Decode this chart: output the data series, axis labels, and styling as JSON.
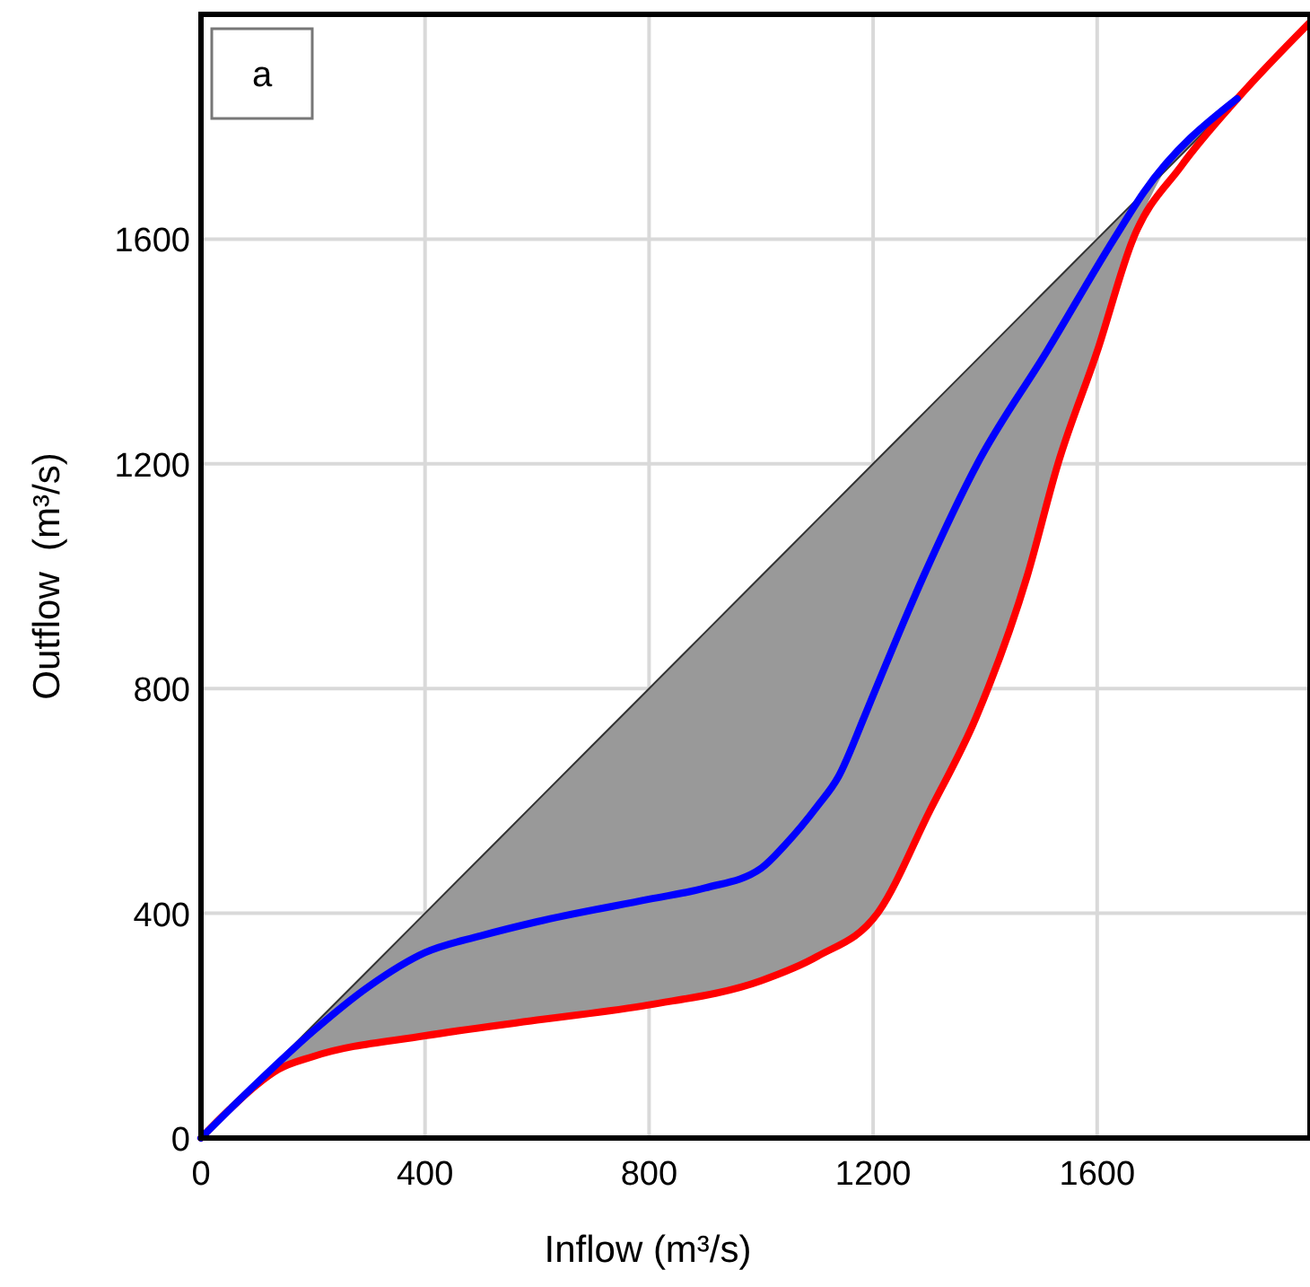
{
  "chart_data": {
    "type": "line",
    "xlabel": "Inflow (m³/s)",
    "ylabel": "Outflow  (m³/s)",
    "annotations": [
      "a"
    ],
    "xlim": [
      0,
      1980
    ],
    "ylim": [
      0,
      2000
    ],
    "xticks": [
      0,
      400,
      800,
      1200,
      1600
    ],
    "yticks": [
      0,
      400,
      800,
      1200,
      1600
    ],
    "grid": true,
    "marker": "none",
    "line_style": "solid",
    "series": [
      {
        "color": "#333333",
        "x": [
          0,
          138,
          200,
          400,
          600,
          800,
          1000,
          1100,
          1210,
          1300,
          1384,
          1475,
          1530,
          1600,
          1664,
          1853
        ],
        "values": [
          0,
          138,
          200,
          400,
          600,
          800,
          1000,
          1100,
          1210,
          1300,
          1384,
          1475,
          1530,
          1600,
          1664,
          1853
        ],
        "lower": [
          0,
          122,
          145,
          182,
          210,
          237,
          280,
          323,
          403,
          580,
          749,
          1000,
          1200,
          1400,
          1600,
          1853
        ],
        "upper": [
          0,
          138,
          200,
          400,
          600,
          800,
          1000,
          1100,
          1210,
          1300,
          1384,
          1475,
          1530,
          1600,
          1664,
          1853
        ]
      },
      {
        "color": "#ff0000",
        "x": [
          0,
          50,
          100,
          138,
          200,
          400,
          600,
          800,
          1000,
          1100,
          1210,
          1300,
          1384,
          1475,
          1530,
          1600,
          1664,
          1750,
          1853,
          1978
        ],
        "values": [
          0,
          50,
          95,
          122,
          145,
          182,
          210,
          237,
          280,
          323,
          403,
          580,
          749,
          1000,
          1200,
          1400,
          1600,
          1730,
          1853,
          1984
        ]
      },
      {
        "color": "#0000ff",
        "x": [
          0,
          100,
          200,
          300,
          400,
          500,
          600,
          800,
          900,
          1000,
          1043,
          1100,
          1138,
          1184,
          1205,
          1290,
          1386,
          1510,
          1630,
          1683,
          1850
        ],
        "values": [
          0,
          98,
          190,
          270,
          330,
          360,
          385,
          425,
          445,
          480,
          522,
          590,
          643,
          749,
          800,
          1000,
          1200,
          1400,
          1600,
          1683,
          1850
        ]
      }
    ]
  }
}
